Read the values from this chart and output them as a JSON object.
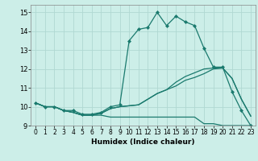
{
  "xlabel": "Humidex (Indice chaleur)",
  "x_values": [
    0,
    1,
    2,
    3,
    4,
    5,
    6,
    7,
    8,
    9,
    10,
    11,
    12,
    13,
    14,
    15,
    16,
    17,
    18,
    19,
    20,
    21,
    22,
    23
  ],
  "lines": [
    {
      "label": "line_spike",
      "y": [
        10.2,
        10.0,
        10.0,
        9.8,
        9.8,
        9.6,
        9.6,
        9.7,
        10.0,
        10.1,
        13.5,
        14.1,
        14.2,
        15.0,
        14.3,
        14.8,
        14.5,
        14.3,
        13.1,
        12.1,
        12.1,
        10.8,
        9.8,
        9.0
      ],
      "marker": true
    },
    {
      "label": "line_flat_low",
      "y": [
        10.2,
        10.0,
        10.0,
        9.8,
        9.7,
        9.55,
        9.55,
        9.55,
        9.45,
        9.45,
        9.45,
        9.45,
        9.45,
        9.45,
        9.45,
        9.45,
        9.45,
        9.45,
        9.1,
        9.1,
        9.0,
        9.0,
        9.0,
        9.0
      ],
      "marker": false
    },
    {
      "label": "line_medium",
      "y": [
        10.2,
        10.0,
        10.0,
        9.8,
        9.7,
        9.55,
        9.55,
        9.65,
        9.9,
        10.0,
        10.05,
        10.1,
        10.4,
        10.7,
        10.9,
        11.1,
        11.4,
        11.55,
        11.75,
        12.0,
        12.05,
        11.5,
        10.4,
        9.5
      ],
      "marker": false
    },
    {
      "label": "line_upper",
      "y": [
        10.2,
        10.0,
        10.0,
        9.8,
        9.7,
        9.55,
        9.55,
        9.65,
        9.9,
        10.0,
        10.05,
        10.1,
        10.4,
        10.7,
        10.9,
        11.3,
        11.6,
        11.8,
        12.0,
        12.05,
        12.05,
        11.5,
        10.4,
        9.5
      ],
      "marker": false
    }
  ],
  "color": "#1a7a6e",
  "bg_color": "#cceee8",
  "grid_color": "#b0d8d2",
  "ylim": [
    9.0,
    15.4
  ],
  "xlim": [
    -0.5,
    23.5
  ],
  "yticks": [
    9,
    10,
    11,
    12,
    13,
    14,
    15
  ],
  "xticks": [
    0,
    1,
    2,
    3,
    4,
    5,
    6,
    7,
    8,
    9,
    10,
    11,
    12,
    13,
    14,
    15,
    16,
    17,
    18,
    19,
    20,
    21,
    22,
    23
  ]
}
